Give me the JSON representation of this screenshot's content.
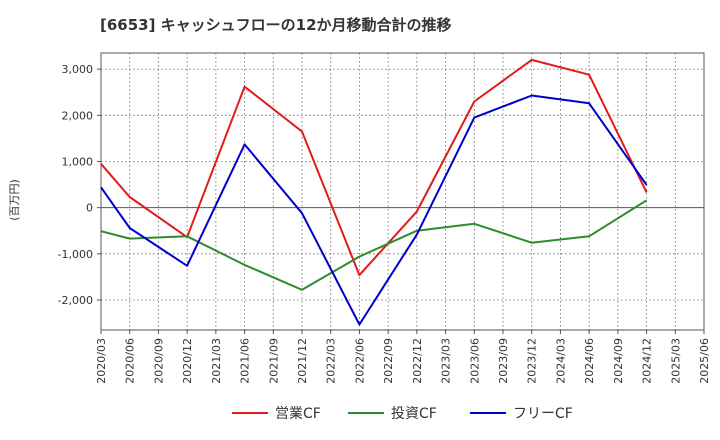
{
  "chart_data": {
    "type": "line",
    "title": "[6653]  キャッシュフローの12か月移動合計の推移",
    "ylabel": "(百万円)",
    "xlabel": "",
    "ylim": [
      -2650,
      3350
    ],
    "yticks": [
      -2000,
      -1000,
      0,
      1000,
      2000,
      3000
    ],
    "ytick_labels": [
      "-2,000",
      "-1,000",
      "0",
      "1,000",
      "2,000",
      "3,000"
    ],
    "categories": [
      "2020/03",
      "2020/06",
      "2020/09",
      "2020/12",
      "2021/03",
      "2021/06",
      "2021/09",
      "2021/12",
      "2022/03",
      "2022/06",
      "2022/09",
      "2022/12",
      "2023/03",
      "2023/06",
      "2023/09",
      "2023/12",
      "2024/03",
      "2024/06",
      "2024/09",
      "2024/12",
      "2025/03",
      "2025/06"
    ],
    "grid": true,
    "legend_position": "bottom",
    "series": [
      {
        "name": "営業CF",
        "color": "#e31a1c",
        "values": [
          950,
          230,
          null,
          -640,
          null,
          2620,
          null,
          1650,
          null,
          -1460,
          null,
          -80,
          null,
          2300,
          null,
          3200,
          null,
          2880,
          null,
          330,
          null,
          null
        ]
      },
      {
        "name": "投資CF",
        "color": "#2e8b2e",
        "values": [
          -510,
          -670,
          null,
          -620,
          null,
          -1240,
          null,
          -1780,
          null,
          -1060,
          null,
          -500,
          null,
          -350,
          null,
          -760,
          null,
          -620,
          null,
          160,
          null,
          null
        ]
      },
      {
        "name": "フリーCF",
        "color": "#0000cc",
        "values": [
          440,
          -440,
          null,
          -1260,
          null,
          1370,
          null,
          -120,
          null,
          -2530,
          null,
          -580,
          null,
          1950,
          null,
          2430,
          null,
          2260,
          null,
          490,
          null,
          null
        ]
      }
    ]
  }
}
